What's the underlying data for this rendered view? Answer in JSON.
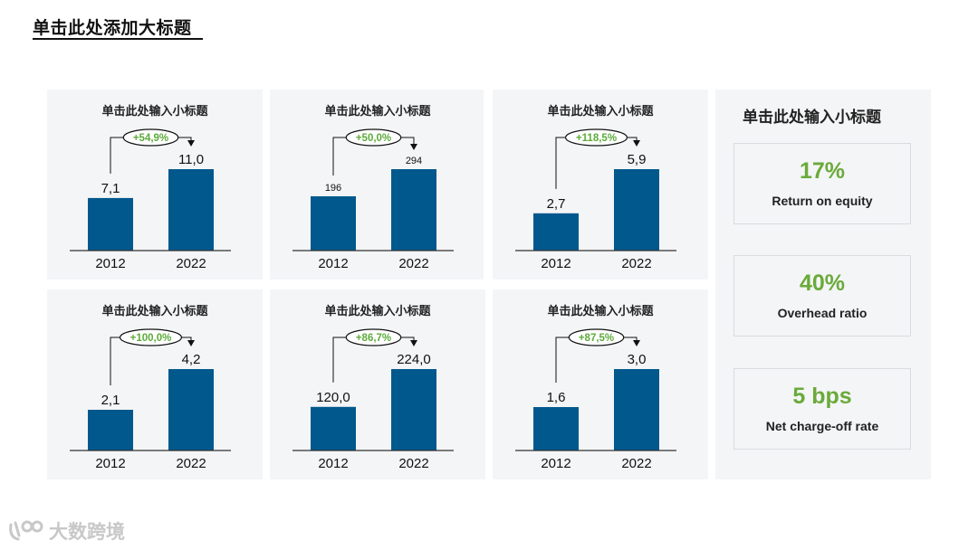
{
  "header": {
    "title": "单击此处添加大标题"
  },
  "chart_data": [
    {
      "type": "bar",
      "title": "单击此处输入小标题",
      "categories": [
        "2012",
        "2022"
      ],
      "values": [
        7.1,
        11.0
      ],
      "value_labels": [
        "7,1",
        "11,0"
      ],
      "growth_label": "+54,9%"
    },
    {
      "type": "bar",
      "title": "单击此处输入小标题",
      "categories": [
        "2012",
        "2022"
      ],
      "values": [
        196,
        294
      ],
      "value_labels": [
        "196",
        "294"
      ],
      "growth_label": "+50,0%"
    },
    {
      "type": "bar",
      "title": "单击此处输入小标题",
      "categories": [
        "2012",
        "2022"
      ],
      "values": [
        2.7,
        5.9
      ],
      "value_labels": [
        "2,7",
        "5,9"
      ],
      "growth_label": "+118,5%"
    },
    {
      "type": "bar",
      "title": "单击此处输入小标题",
      "categories": [
        "2012",
        "2022"
      ],
      "values": [
        2.1,
        4.2
      ],
      "value_labels": [
        "2,1",
        "4,2"
      ],
      "growth_label": "+100,0%"
    },
    {
      "type": "bar",
      "title": "单击此处输入小标题",
      "categories": [
        "2012",
        "2022"
      ],
      "values": [
        120.0,
        224.0
      ],
      "value_labels": [
        "120,0",
        "224,0"
      ],
      "growth_label": "+86,7%"
    },
    {
      "type": "bar",
      "title": "单击此处输入小标题",
      "categories": [
        "2012",
        "2022"
      ],
      "values": [
        1.6,
        3.0
      ],
      "value_labels": [
        "1,6",
        "3,0"
      ],
      "growth_label": "+87,5%"
    }
  ],
  "kpi": {
    "title": "单击此处输入小标题",
    "cards": [
      {
        "value": "17%",
        "label": "Return on equity"
      },
      {
        "value": "40%",
        "label": "Overhead ratio"
      },
      {
        "value": "5 bps",
        "label": "Net charge-off rate"
      }
    ]
  },
  "watermark": {
    "text": "大数跨境",
    "icon": "brand-logo-icon"
  },
  "colors": {
    "bar": "#00588c",
    "growth": "#5cab3a",
    "kpi_value": "#6aaa3a",
    "panel_bg": "#f4f5f7"
  }
}
